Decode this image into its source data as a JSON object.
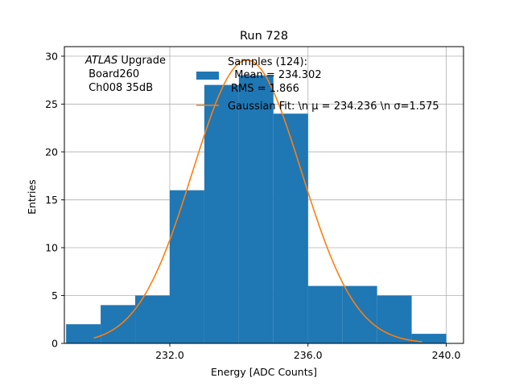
{
  "chart_data": {
    "type": "bar",
    "title": "Run 728",
    "xlabel": "Energy [ADC Counts]",
    "ylabel": "Entries",
    "xlim": [
      228.95,
      240.5
    ],
    "ylim": [
      0,
      31
    ],
    "xticks": [
      232.0,
      236.0,
      240.0
    ],
    "xtick_labels": [
      "232.0",
      "236.0",
      "240.0"
    ],
    "yticks": [
      0,
      5,
      10,
      15,
      20,
      25,
      30
    ],
    "ytick_labels": [
      "0",
      "5",
      "10",
      "15",
      "20",
      "25",
      "30"
    ],
    "grid": true,
    "histogram": {
      "bin_edges": [
        229,
        230,
        231,
        232,
        233,
        234,
        235,
        236,
        237,
        238,
        239,
        240
      ],
      "counts": [
        2,
        4,
        5,
        16,
        27,
        28,
        24,
        6,
        6,
        5,
        1
      ],
      "color": "#1f77b4"
    },
    "fit": {
      "type": "gaussian",
      "amplitude": 29.6,
      "mu": 234.236,
      "sigma": 1.575,
      "x_range": [
        229.8,
        239.3
      ],
      "color": "#ff7f0e"
    },
    "annotation": {
      "italic": "ATLAS",
      "rest": " Upgrade",
      "line2": " Board260",
      "line3": " Ch008 35dB"
    },
    "legend": {
      "placement": "top-center",
      "hist_lines": [
        "Samples (124):",
        "  Mean = 234.302",
        "RMS = 1.866"
      ],
      "fit_label": "Gaussian Fit: \\n μ = 234.236 \\n σ=1.575"
    }
  }
}
